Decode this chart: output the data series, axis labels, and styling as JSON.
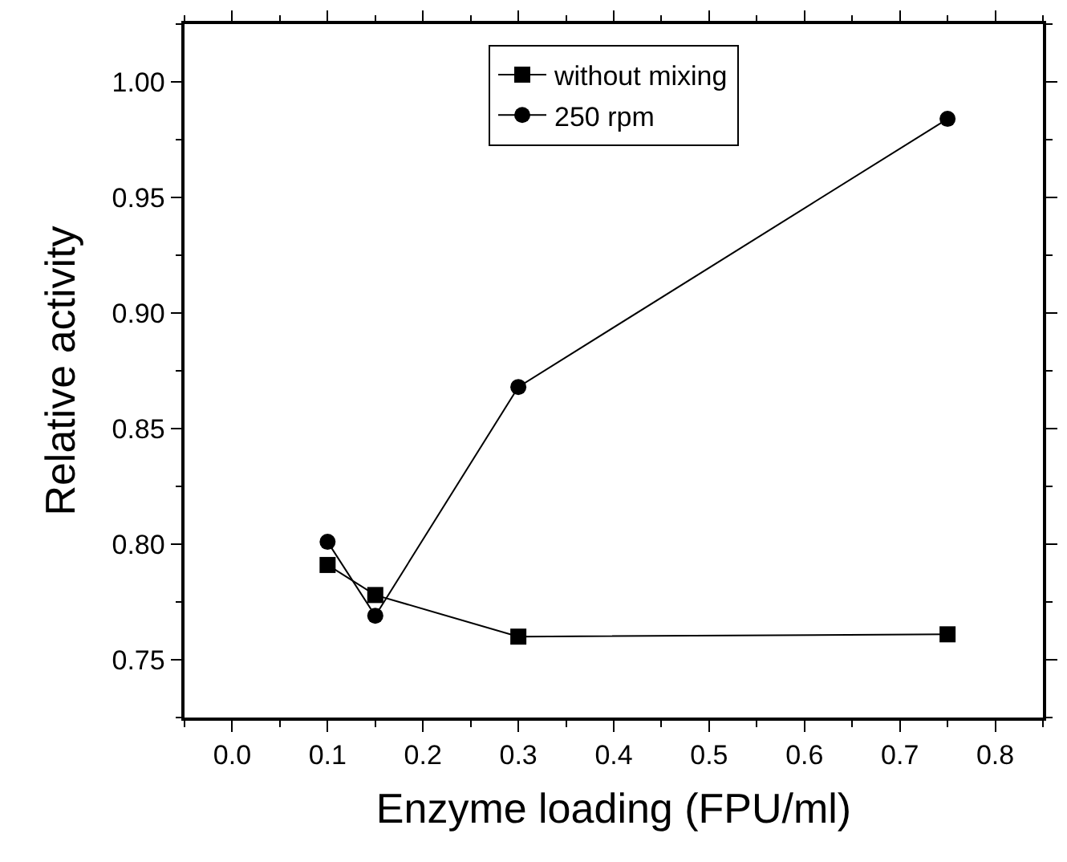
{
  "chart_data": {
    "type": "line",
    "xlabel": "Enzyme loading (FPU/ml)",
    "ylabel": "Relative activity",
    "x": [
      0.1,
      0.15,
      0.3,
      0.75
    ],
    "series": [
      {
        "name": "without mixing",
        "color": "#000000",
        "marker": "square",
        "values": [
          0.791,
          0.778,
          0.76,
          0.761
        ]
      },
      {
        "name": "250 rpm",
        "color": "#000000",
        "marker": "circle",
        "values": [
          0.801,
          0.769,
          0.868,
          0.984
        ]
      }
    ],
    "xlim": [
      -0.05,
      0.85
    ],
    "xticks": [
      {
        "value": 0.0,
        "label": "0.0"
      },
      0.1,
      0.2,
      0.3,
      0.4,
      0.5,
      0.6,
      0.7,
      0.8
    ],
    "ylim": [
      0.725,
      1.025
    ],
    "yticks": [
      0.75,
      {
        "value": 0.8,
        "label": "0.80"
      },
      0.85,
      {
        "value": 0.9,
        "label": "0.90"
      },
      0.95,
      {
        "value": 1.0,
        "label": "1.00"
      }
    ],
    "legend": "top",
    "line_style": "solid"
  }
}
